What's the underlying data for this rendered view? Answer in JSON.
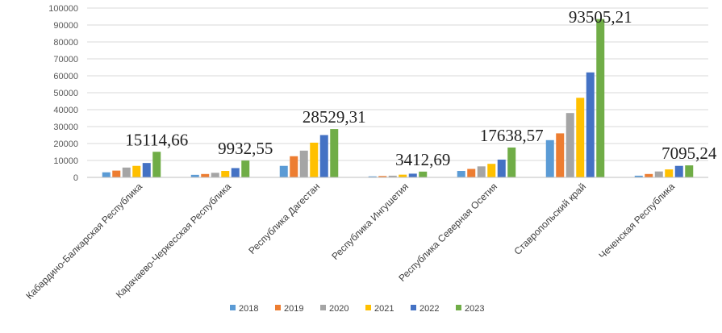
{
  "chart_data": {
    "type": "bar",
    "title": "",
    "xlabel": "",
    "ylabel": "",
    "ylim": [
      0,
      100000
    ],
    "yticks": [
      "0",
      "10000",
      "20000",
      "30000",
      "40000",
      "50000",
      "60000",
      "70000",
      "80000",
      "90000",
      "100000"
    ],
    "grid": true,
    "legend_position": "bottom",
    "categories": [
      "Кабардино-Балкарская Республика",
      "Карачаево-Черкесская Республика",
      "Республика Дагестан",
      "Республика Ингушетия",
      "Республика Северная Осетия",
      "Ставропольский край",
      "Чеченская Республика"
    ],
    "series": [
      {
        "name": "2018",
        "color": "#5B9BD5",
        "values": [
          3000,
          1500,
          6800,
          600,
          3800,
          22000,
          1000
        ]
      },
      {
        "name": "2019",
        "color": "#ED7D31",
        "values": [
          4000,
          2000,
          12500,
          800,
          5000,
          26000,
          2000
        ]
      },
      {
        "name": "2020",
        "color": "#A5A5A5",
        "values": [
          5800,
          2700,
          15800,
          1000,
          6500,
          38000,
          3500
        ]
      },
      {
        "name": "2021",
        "color": "#FFC000",
        "values": [
          6800,
          3800,
          20500,
          1600,
          8000,
          47000,
          4700
        ]
      },
      {
        "name": "2022",
        "color": "#4472C4",
        "values": [
          8500,
          5500,
          25000,
          2200,
          10500,
          62000,
          6800
        ]
      },
      {
        "name": "2023",
        "color": "#70AD47",
        "values": [
          15114.66,
          9932.55,
          28529.31,
          3412.69,
          17638.57,
          93505.21,
          7095.24
        ]
      }
    ],
    "annotations": [
      "15114,66",
      "9932,55",
      "28529,31",
      "3412,69",
      "17638,57",
      "93505,21",
      "7095,24"
    ]
  }
}
